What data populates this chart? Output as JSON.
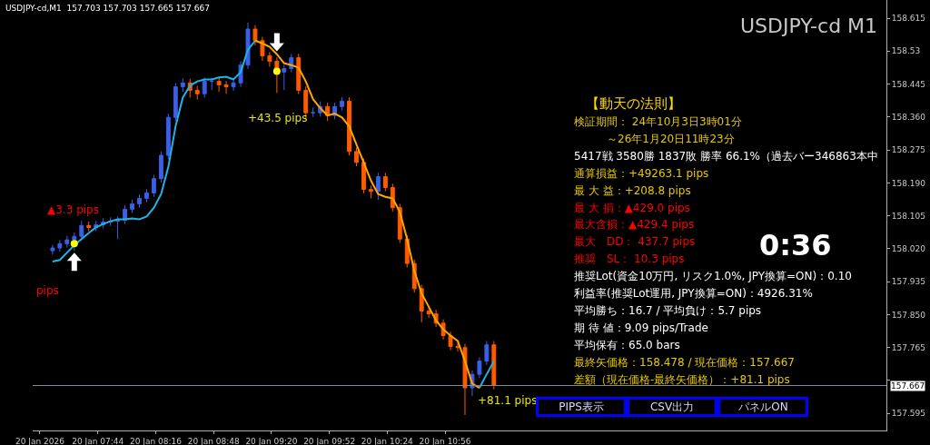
{
  "chart_data": [
    {
      "type": "candlestick",
      "title": "USDJPY-cd M1",
      "subtitle": "USDJPY-cd,M1  157.703 157.703 157.665 157.667",
      "x": [
        "2026-01-20T07:19",
        "2026-01-20T07:23",
        "2026-01-20T07:27",
        "2026-01-20T07:31",
        "2026-01-20T07:35",
        "2026-01-20T07:39",
        "2026-01-20T07:43",
        "2026-01-20T07:47",
        "2026-01-20T07:51",
        "2026-01-20T07:55",
        "2026-01-20T07:59",
        "2026-01-20T08:03",
        "2026-01-20T08:07",
        "2026-01-20T08:11",
        "2026-01-20T08:15",
        "2026-01-20T08:19",
        "2026-01-20T08:23",
        "2026-01-20T08:27",
        "2026-01-20T08:31",
        "2026-01-20T08:35",
        "2026-01-20T08:39",
        "2026-01-20T08:43",
        "2026-01-20T08:47",
        "2026-01-20T08:51",
        "2026-01-20T08:55",
        "2026-01-20T08:59",
        "2026-01-20T09:03",
        "2026-01-20T09:07",
        "2026-01-20T09:11",
        "2026-01-20T09:15",
        "2026-01-20T09:19",
        "2026-01-20T09:23",
        "2026-01-20T09:27",
        "2026-01-20T09:31",
        "2026-01-20T09:35",
        "2026-01-20T09:39",
        "2026-01-20T09:43",
        "2026-01-20T09:47",
        "2026-01-20T09:51",
        "2026-01-20T09:55",
        "2026-01-20T09:59",
        "2026-01-20T10:03",
        "2026-01-20T10:07",
        "2026-01-20T10:11",
        "2026-01-20T10:15",
        "2026-01-20T10:19",
        "2026-01-20T10:23",
        "2026-01-20T10:27",
        "2026-01-20T10:31",
        "2026-01-20T10:35",
        "2026-01-20T10:39",
        "2026-01-20T10:43",
        "2026-01-20T10:47",
        "2026-01-20T10:51",
        "2026-01-20T10:55",
        "2026-01-20T10:59",
        "2026-01-20T11:03",
        "2026-01-20T11:07",
        "2026-01-20T11:11",
        "2026-01-20T11:15",
        "2026-01-20T11:19",
        "2026-01-20T11:23"
      ],
      "ohlc": [
        [
          158.015,
          158.03,
          158.005,
          158.022
        ],
        [
          158.022,
          158.043,
          158.012,
          158.033
        ],
        [
          158.033,
          158.053,
          158.023,
          158.043
        ],
        [
          158.043,
          158.062,
          158.015,
          158.052
        ],
        [
          158.052,
          158.092,
          158.042,
          158.08
        ],
        [
          158.08,
          158.09,
          158.065,
          158.075
        ],
        [
          158.075,
          158.092,
          158.065,
          158.082
        ],
        [
          158.082,
          158.099,
          158.072,
          158.089
        ],
        [
          158.089,
          158.101,
          158.079,
          158.091
        ],
        [
          158.091,
          158.104,
          158.045,
          158.094
        ],
        [
          158.094,
          158.132,
          158.084,
          158.122
        ],
        [
          158.122,
          158.146,
          158.112,
          158.136
        ],
        [
          158.136,
          158.16,
          158.126,
          158.15
        ],
        [
          158.15,
          158.174,
          158.14,
          158.164
        ],
        [
          158.164,
          158.211,
          158.154,
          158.201
        ],
        [
          158.201,
          158.271,
          158.191,
          158.261
        ],
        [
          158.261,
          158.369,
          158.251,
          158.359
        ],
        [
          158.359,
          158.448,
          158.349,
          158.438
        ],
        [
          158.438,
          158.46,
          158.425,
          158.448
        ],
        [
          158.448,
          158.458,
          158.41,
          158.429
        ],
        [
          158.429,
          158.44,
          158.405,
          158.42
        ],
        [
          158.42,
          158.462,
          158.41,
          158.452
        ],
        [
          158.452,
          158.462,
          158.43,
          158.452
        ],
        [
          158.452,
          158.462,
          158.425,
          158.443
        ],
        [
          158.443,
          158.453,
          158.42,
          158.438
        ],
        [
          158.438,
          158.46,
          158.428,
          158.448
        ],
        [
          158.448,
          158.504,
          158.438,
          158.494
        ],
        [
          158.494,
          158.604,
          158.484,
          158.587
        ],
        [
          158.587,
          158.597,
          158.545,
          158.557
        ],
        [
          158.557,
          158.567,
          158.505,
          158.518
        ],
        [
          158.518,
          158.528,
          158.49,
          158.504
        ],
        [
          158.504,
          158.514,
          158.422,
          158.476
        ],
        [
          158.476,
          158.495,
          158.43,
          158.485
        ],
        [
          158.485,
          158.523,
          158.475,
          158.513
        ],
        [
          158.513,
          158.523,
          158.419,
          158.429
        ],
        [
          158.429,
          158.439,
          158.355,
          158.371
        ],
        [
          158.371,
          158.385,
          158.36,
          158.371
        ],
        [
          158.371,
          158.4,
          158.361,
          158.387
        ],
        [
          158.387,
          158.397,
          158.35,
          158.364
        ],
        [
          158.364,
          158.397,
          158.354,
          158.387
        ],
        [
          158.387,
          158.411,
          158.377,
          158.401
        ],
        [
          158.401,
          158.411,
          158.261,
          158.271
        ],
        [
          158.271,
          158.281,
          158.233,
          158.243
        ],
        [
          158.243,
          158.253,
          158.163,
          158.173
        ],
        [
          158.173,
          158.183,
          158.15,
          158.168
        ],
        [
          158.168,
          158.216,
          158.146,
          158.206
        ],
        [
          158.206,
          158.216,
          158.168,
          158.178
        ],
        [
          158.178,
          158.188,
          158.116,
          158.126
        ],
        [
          158.126,
          158.136,
          158.035,
          158.045
        ],
        [
          158.045,
          158.055,
          157.972,
          157.982
        ],
        [
          157.982,
          157.992,
          157.907,
          157.917
        ],
        [
          157.917,
          157.927,
          157.83,
          157.859
        ],
        [
          157.859,
          157.869,
          157.842,
          157.852
        ],
        [
          157.852,
          157.862,
          157.818,
          157.828
        ],
        [
          157.828,
          157.838,
          157.786,
          157.796
        ],
        [
          157.796,
          157.806,
          157.758,
          157.768
        ],
        [
          157.768,
          157.778,
          157.755,
          157.765
        ],
        [
          157.765,
          157.775,
          157.591,
          157.661
        ],
        [
          157.661,
          157.706,
          157.64,
          157.696
        ],
        [
          157.696,
          157.74,
          157.686,
          157.73
        ],
        [
          157.73,
          157.782,
          157.72,
          157.772
        ],
        [
          157.772,
          157.782,
          157.657,
          157.667
        ]
      ],
      "colors": [
        "#3b5fe6",
        "#3b5fe6",
        "#3b5fe6",
        "#3b5fe6",
        "#3b5fe6",
        "#ff5a00",
        "#3b5fe6",
        "#3b5fe6",
        "#3b5fe6",
        "#3b5fe6",
        "#3b5fe6",
        "#3b5fe6",
        "#3b5fe6",
        "#3b5fe6",
        "#3b5fe6",
        "#3b5fe6",
        "#3b5fe6",
        "#3b5fe6",
        "#3b5fe6",
        "#ff5a00",
        "#ff5a00",
        "#3b5fe6",
        "#3b5fe6",
        "#ff5a00",
        "#ff5a00",
        "#3b5fe6",
        "#3b5fe6",
        "#3b5fe6",
        "#ff5a00",
        "#ff5a00",
        "#ff5a00",
        "#ff5a00",
        "#3b5fe6",
        "#3b5fe6",
        "#ff5a00",
        "#ff5a00",
        "#3b5fe6",
        "#3b5fe6",
        "#ff5a00",
        "#3b5fe6",
        "#3b5fe6",
        "#ff5a00",
        "#ff5a00",
        "#ff5a00",
        "#ff5a00",
        "#3b5fe6",
        "#ff5a00",
        "#ff5a00",
        "#ff5a00",
        "#ff5a00",
        "#ff5a00",
        "#ff5a00",
        "#ff5a00",
        "#ff5a00",
        "#ff5a00",
        "#ff5a00",
        "#ff5a00",
        "#ff5a00",
        "#3b5fe6",
        "#3b5fe6",
        "#3b5fe6",
        "#ff5a00"
      ],
      "series": [
        {
          "type": "line",
          "color": "#1eb4e6",
          "values": [
            157.987,
            157.991,
            158.01,
            158.029,
            158.045,
            158.061,
            158.075,
            158.084,
            158.091,
            158.096,
            158.096,
            158.098,
            158.096,
            158.103,
            158.126,
            158.161,
            158.231,
            158.336,
            158.41,
            158.441,
            158.452,
            158.457,
            158.457,
            158.462,
            158.464,
            158.457,
            158.476,
            158.534,
            158.557,
            null,
            null,
            null,
            null,
            null,
            null,
            null,
            null,
            null,
            null,
            null,
            null,
            null,
            null,
            null,
            null,
            null,
            null,
            null,
            null,
            null,
            null,
            null,
            null,
            null,
            null,
            null,
            null,
            null,
            null,
            157.661,
            157.696,
            157.73
          ]
        },
        {
          "type": "line",
          "color": "#ffa500",
          "values": [
            null,
            null,
            null,
            null,
            null,
            null,
            null,
            null,
            null,
            null,
            null,
            null,
            null,
            null,
            null,
            null,
            null,
            null,
            null,
            null,
            null,
            null,
            null,
            null,
            null,
            null,
            null,
            null,
            158.557,
            158.55,
            158.541,
            158.522,
            158.499,
            158.494,
            158.487,
            158.452,
            158.406,
            158.383,
            158.364,
            158.369,
            158.359,
            158.336,
            158.289,
            158.243,
            158.196,
            158.161,
            158.154,
            158.15,
            158.115,
            158.045,
            157.963,
            157.905,
            157.87,
            157.835,
            157.812,
            157.796,
            157.782,
            157.73,
            157.672,
            157.661,
            null,
            null
          ]
        },
        {
          "type": "scatter",
          "color": "#ffff00",
          "marker": "circle",
          "x": [
            "2026-01-20T07:31",
            "2026-01-20T09:23"
          ],
          "values": [
            158.033,
            158.478
          ]
        }
      ],
      "xlim": [
        "2026-01-20T07:08",
        "2026-01-20T15:00"
      ],
      "xticks": [
        {
          "value": "2026-01-20T07:12",
          "label": "20 Jan 2026"
        },
        {
          "value": "2026-01-20T07:44",
          "label": "20 Jan 07:44"
        },
        {
          "value": "2026-01-20T08:16",
          "label": "20 Jan 08:16"
        },
        {
          "value": "2026-01-20T08:48",
          "label": "20 Jan 08:48"
        },
        {
          "value": "2026-01-20T09:20",
          "label": "20 Jan 09:20"
        },
        {
          "value": "2026-01-20T09:52",
          "label": "20 Jan 09:52"
        },
        {
          "value": "2026-01-20T10:24",
          "label": "20 Jan 10:24"
        },
        {
          "value": "2026-01-20T10:56",
          "label": "20 Jan 10:56"
        }
      ],
      "ylim": [
        157.551,
        158.662
      ],
      "yticks": [
        157.595,
        {
          "value": 157.68,
          "label": null
        },
        157.765,
        {
          "value": 157.85,
          "label": "157.850"
        },
        157.935,
        {
          "value": 158.02,
          "label": "158.020"
        },
        158.105,
        {
          "value": 158.19,
          "label": "158.190"
        },
        158.275,
        {
          "value": 158.36,
          "label": "158.360"
        },
        158.445,
        158.53,
        158.615
      ],
      "ref_lines": [
        {
          "axis": "y",
          "value": 157.667,
          "label": "157.667",
          "color": "#7f8c99"
        }
      ],
      "annotations": [
        "▲3.3 pips",
        "pips",
        "+43.5 pips",
        "+81.1 pips"
      ],
      "grid": false,
      "legend": false
    },
    {
      "type": "other",
      "title": "【動天の法則】",
      "categories": [
        "検証期間： 24年10月3日3時01分",
        "　　　～26年1月20日11時23分",
        "5417戦 3580勝 1837敗 勝率 66.1%（過去バー346863本中",
        "通算損益：+49263.1 pips",
        "最 大 益：+208.8 pips",
        "最 大 損：▲429.0 pips",
        "最大含損：▲429.4 pips",
        "最大　DD： 437.7 pips",
        "推奨　SL： 10.3 pips",
        "推奨Lot(資金10万円, リスク1.0%, JPY換算=ON)：0.10",
        "利益率(推奨Lot運用, JPY換算=ON)：4926.31%",
        "平均勝ち：16.7 / 平均負け：5.7 pips",
        "期 待 値：9.09 pips/Trade",
        "平均保有：65.0 bars",
        "最終矢価格：158.478 / 現在価格：157.667",
        "差額（現在価格-最終矢価格）：+81.1 pips"
      ],
      "colors": [
        "#e6c800",
        "#e6c800",
        "#ffffff",
        "#e6c800",
        "#e6c800",
        "#ff0000",
        "#ff0000",
        "#ff0000",
        "#ff0000",
        "#ffffff",
        "#ffffff",
        "#ffffff",
        "#ffffff",
        "#ffffff",
        "#e6c800",
        "#e6c800"
      ],
      "annotations": [
        "0:36"
      ]
    },
    {
      "type": "other",
      "categories": [
        "PIPS表示",
        "CSV出力",
        "パネルON"
      ],
      "colors": [
        "#0000ff",
        "#0000ff",
        "#0000ff"
      ]
    }
  ]
}
